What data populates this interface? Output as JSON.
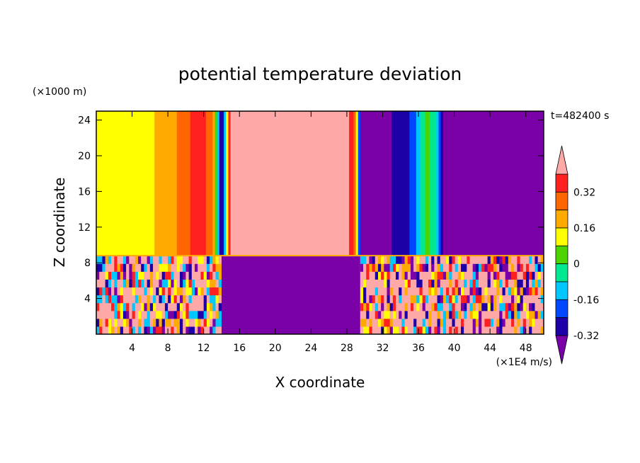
{
  "chart_data": {
    "type": "heatmap",
    "title": "potential temperature deviation",
    "time_label": "t=482400 s",
    "xlabel": "X coordinate",
    "ylabel": "Z coordinate",
    "x_units": "(×1E4 m/s)",
    "y_units": "(×1000 m)",
    "xlim": [
      0,
      50
    ],
    "ylim": [
      0,
      25
    ],
    "x_ticks": [
      "4",
      "8",
      "12",
      "16",
      "20",
      "24",
      "28",
      "32",
      "36",
      "40",
      "44",
      "48"
    ],
    "y_ticks": [
      "4",
      "8",
      "12",
      "16",
      "20",
      "24"
    ],
    "colorbar": {
      "levels": [
        -0.4,
        -0.32,
        -0.24,
        -0.16,
        -0.08,
        0,
        0.08,
        0.16,
        0.24,
        0.32,
        0.4
      ],
      "colors": [
        "#7a00a8",
        "#1d00a8",
        "#0048ff",
        "#00c8ff",
        "#00e890",
        "#4cd400",
        "#ffff00",
        "#ffaa00",
        "#ff6600",
        "#ff2020",
        "#ffa8a8"
      ],
      "labels": [
        "0.32",
        "0.16",
        "0",
        "-0.16",
        "-0.32"
      ],
      "extend": "both"
    },
    "upper_layer_profile_x": [
      0,
      3,
      4,
      6,
      8,
      10,
      11,
      13,
      14,
      15,
      16,
      28,
      29,
      29.5,
      31,
      35,
      36,
      37,
      38,
      38.5,
      39,
      44,
      50
    ],
    "upper_layer_profile_value": [
      0.12,
      0.14,
      0.12,
      0.14,
      0.22,
      0.26,
      0.36,
      0.3,
      -0.4,
      0.44,
      0.44,
      0.44,
      0.3,
      -0.4,
      -0.4,
      -0.24,
      -0.12,
      0.02,
      -0.08,
      -0.2,
      -0.4,
      -0.4,
      -0.4
    ],
    "lower_layer_segments": [
      {
        "x": [
          0,
          14
        ],
        "value": "mixed"
      },
      {
        "x": [
          14,
          29.5
        ],
        "value": -0.4
      },
      {
        "x": [
          29.5,
          50
        ],
        "value": "mixed"
      }
    ],
    "layer_boundary_z": 8.8
  }
}
